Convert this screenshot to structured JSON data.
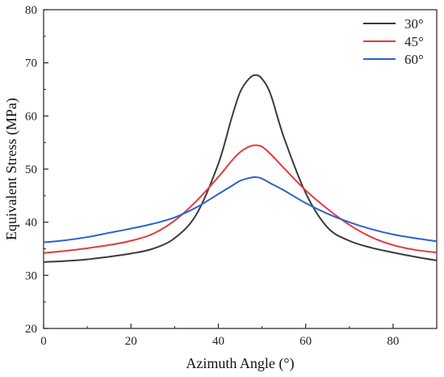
{
  "chart_data": {
    "type": "line",
    "title": "",
    "xlabel": "Azimuth Angle (°)",
    "ylabel": "Equivalent Stress (MPa)",
    "xlim": [
      0,
      90
    ],
    "ylim": [
      20,
      80
    ],
    "xticks": [
      0,
      20,
      40,
      60,
      80
    ],
    "yticks": [
      20,
      30,
      40,
      50,
      60,
      70,
      80
    ],
    "grid": false,
    "legend_position": "top-right",
    "x": [
      0,
      5,
      10,
      15,
      20,
      25,
      30,
      35,
      40,
      43,
      45,
      47,
      48.5,
      50,
      52,
      55,
      60,
      65,
      70,
      75,
      80,
      85,
      90
    ],
    "series": [
      {
        "name": "30°",
        "color": "#3a3a3a",
        "values": [
          32.5,
          32.7,
          33.0,
          33.5,
          34.1,
          35.0,
          37.0,
          41.5,
          51.0,
          59.5,
          64.5,
          67.0,
          67.7,
          67.0,
          64.0,
          56.0,
          45.5,
          39.0,
          36.5,
          35.2,
          34.3,
          33.5,
          32.8
        ]
      },
      {
        "name": "45°",
        "color": "#e23b3b",
        "values": [
          34.2,
          34.6,
          35.1,
          35.7,
          36.5,
          37.8,
          40.3,
          44.0,
          48.5,
          51.5,
          53.2,
          54.2,
          54.5,
          54.2,
          52.8,
          50.2,
          46.0,
          42.5,
          39.5,
          37.2,
          35.7,
          34.8,
          34.3
        ]
      },
      {
        "name": "60°",
        "color": "#2f5fcf",
        "values": [
          36.2,
          36.6,
          37.2,
          38.0,
          38.8,
          39.7,
          40.9,
          42.8,
          45.3,
          46.8,
          47.8,
          48.3,
          48.5,
          48.2,
          47.3,
          46.0,
          43.6,
          41.6,
          40.0,
          38.7,
          37.7,
          37.0,
          36.4
        ]
      }
    ]
  }
}
